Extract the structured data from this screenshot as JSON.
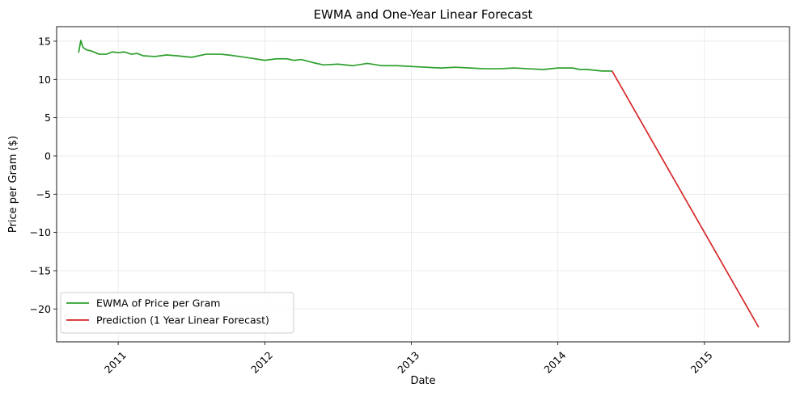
{
  "chart_data": {
    "type": "line",
    "title": "EWMA and One-Year Linear Forecast",
    "xlabel": "Date",
    "ylabel": "Price per Gram ($)",
    "xlim": [
      2010.58,
      2015.58
    ],
    "ylim": [
      -24.3,
      16.9
    ],
    "x_ticks": [
      2011,
      2012,
      2013,
      2014,
      2015
    ],
    "x_tick_labels": [
      "2011",
      "2012",
      "2013",
      "2014",
      "2015"
    ],
    "y_ticks": [
      15,
      10,
      5,
      0,
      -5,
      -10,
      -15,
      -20
    ],
    "y_tick_labels": [
      "15",
      "10",
      "5",
      "0",
      "−5",
      "−10",
      "−15",
      "−20"
    ],
    "grid": true,
    "legend_position": "lower-left",
    "series": [
      {
        "name": "EWMA of Price per Gram",
        "color": "#2ca02c",
        "x": [
          2010.73,
          2010.745,
          2010.76,
          2010.78,
          2010.82,
          2010.87,
          2010.92,
          2010.96,
          2011.0,
          2011.04,
          2011.09,
          2011.13,
          2011.17,
          2011.25,
          2011.33,
          2011.4,
          2011.5,
          2011.6,
          2011.7,
          2011.75,
          2011.83,
          2011.9,
          2012.0,
          2012.08,
          2012.15,
          2012.2,
          2012.25,
          2012.33,
          2012.4,
          2012.5,
          2012.6,
          2012.7,
          2012.8,
          2012.9,
          2013.0,
          2013.1,
          2013.2,
          2013.3,
          2013.4,
          2013.5,
          2013.6,
          2013.7,
          2013.8,
          2013.9,
          2014.0,
          2014.1,
          2014.15,
          2014.2,
          2014.3,
          2014.37
        ],
        "y": [
          13.5,
          15.1,
          14.2,
          13.9,
          13.7,
          13.3,
          13.3,
          13.6,
          13.5,
          13.6,
          13.3,
          13.4,
          13.1,
          13.0,
          13.2,
          13.1,
          12.9,
          13.3,
          13.3,
          13.2,
          13.0,
          12.8,
          12.5,
          12.7,
          12.7,
          12.5,
          12.6,
          12.2,
          11.9,
          12.0,
          11.8,
          12.1,
          11.8,
          11.8,
          11.7,
          11.6,
          11.5,
          11.6,
          11.5,
          11.4,
          11.4,
          11.5,
          11.4,
          11.3,
          11.5,
          11.5,
          11.3,
          11.3,
          11.1,
          11.1
        ]
      },
      {
        "name": "Prediction (1 Year Linear Forecast)",
        "color": "#d62728",
        "x": [
          2014.37,
          2015.37
        ],
        "y": [
          11.1,
          -22.4
        ]
      }
    ]
  }
}
